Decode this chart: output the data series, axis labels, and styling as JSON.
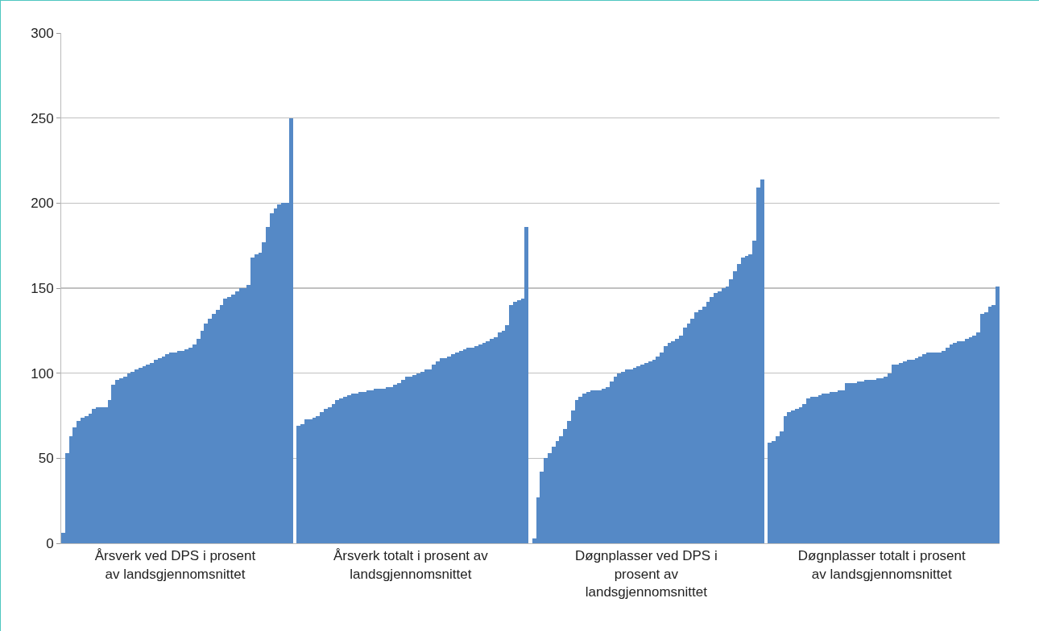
{
  "chart_data": {
    "type": "bar",
    "categories": [
      null,
      null,
      null,
      null,
      null,
      null,
      null,
      null,
      null,
      null,
      null,
      null,
      null,
      null,
      null,
      null,
      null,
      null,
      null,
      null,
      null,
      null,
      null,
      null,
      null,
      null,
      null,
      null,
      null,
      "Årsverk ved DPS i prosent av landsgjennomsnittet",
      null,
      null,
      null,
      null,
      null,
      null,
      null,
      null,
      null,
      null,
      null,
      null,
      null,
      null,
      null,
      null,
      null,
      null,
      null,
      null,
      null,
      null,
      null,
      null,
      null,
      null,
      null,
      null,
      null,
      null,
      null,
      null,
      null,
      null,
      null,
      null,
      null,
      null,
      null,
      null,
      null,
      null,
      null,
      null,
      null,
      null,
      null,
      null,
      null,
      null,
      null,
      null,
      null,
      null,
      null,
      null,
      null,
      null,
      null,
      null,
      "Årsverk totalt i prosent av landsgjennomsnittet",
      null,
      null,
      null,
      null,
      null,
      null,
      null,
      null,
      null,
      null,
      null,
      null,
      null,
      null,
      null,
      null,
      null,
      null,
      null,
      null,
      null,
      null,
      null,
      null,
      null,
      null,
      null,
      null,
      null,
      null,
      null,
      null,
      null,
      null,
      null,
      null,
      null,
      null,
      null,
      null,
      null,
      null,
      null,
      null,
      null,
      null,
      null,
      null,
      null,
      null,
      null,
      null,
      null,
      null,
      null,
      null,
      null,
      null,
      null,
      null,
      "Døgnplasser ved DPS i prosent av landsgjennomsnittet",
      null,
      null,
      null,
      null,
      null,
      null,
      null,
      null,
      null,
      null,
      null,
      null,
      null,
      null,
      null,
      null,
      null,
      null,
      null,
      null,
      null,
      null,
      null,
      null,
      null,
      null,
      null,
      null,
      null,
      null,
      null,
      null,
      null,
      null,
      null,
      null,
      null,
      null,
      null,
      null,
      null,
      null,
      null,
      null,
      null,
      null,
      null,
      null,
      null,
      null,
      null,
      null,
      null,
      null,
      null,
      null,
      null,
      null,
      null,
      null,
      "Døgnplasser totalt i prosent av landsgjennomsnittet",
      null,
      null,
      null,
      null,
      null,
      null,
      null,
      null,
      null,
      null,
      null,
      null,
      null,
      null,
      null,
      null,
      null,
      null,
      null,
      null,
      null,
      null,
      null,
      null,
      null,
      null,
      null,
      null,
      null,
      null
    ],
    "values": [
      6,
      53,
      63,
      68,
      72,
      74,
      75,
      76,
      79,
      80,
      80,
      80,
      84,
      93,
      96,
      97,
      98,
      100,
      101,
      102,
      103,
      104,
      105,
      106,
      108,
      109,
      110,
      111,
      112,
      112,
      113,
      113,
      114,
      115,
      117,
      120,
      125,
      129,
      132,
      135,
      137,
      140,
      144,
      145,
      146,
      148,
      150,
      150,
      152,
      168,
      170,
      171,
      177,
      186,
      194,
      197,
      199,
      200,
      200,
      250,
      null,
      69,
      70,
      73,
      73,
      74,
      75,
      77,
      79,
      80,
      82,
      84,
      85,
      86,
      87,
      88,
      88,
      89,
      89,
      90,
      90,
      91,
      91,
      91,
      92,
      92,
      93,
      94,
      96,
      98,
      98,
      99,
      100,
      101,
      102,
      102,
      105,
      107,
      109,
      109,
      110,
      111,
      112,
      113,
      114,
      115,
      115,
      116,
      117,
      118,
      119,
      120,
      121,
      124,
      125,
      128,
      140,
      142,
      143,
      144,
      186,
      null,
      3,
      27,
      42,
      50,
      53,
      57,
      60,
      63,
      67,
      72,
      78,
      84,
      86,
      88,
      89,
      90,
      90,
      90,
      91,
      92,
      95,
      98,
      100,
      101,
      102,
      102,
      103,
      104,
      105,
      106,
      107,
      108,
      110,
      112,
      116,
      118,
      119,
      120,
      122,
      127,
      129,
      132,
      136,
      137,
      139,
      142,
      145,
      147,
      148,
      150,
      151,
      155,
      160,
      164,
      168,
      169,
      170,
      178,
      209,
      214,
      null,
      59,
      60,
      63,
      66,
      75,
      77,
      78,
      79,
      80,
      82,
      85,
      86,
      86,
      87,
      88,
      88,
      89,
      89,
      90,
      90,
      94,
      94,
      94,
      95,
      95,
      96,
      96,
      96,
      97,
      97,
      98,
      100,
      105,
      105,
      106,
      107,
      108,
      108,
      109,
      110,
      111,
      112,
      112,
      112,
      112,
      113,
      115,
      117,
      118,
      119,
      119,
      120,
      121,
      122,
      124,
      135,
      136,
      139,
      140,
      151
    ],
    "color": "#5589c6",
    "ylim": [
      0,
      300
    ],
    "yticks": [
      0,
      50,
      100,
      150,
      200,
      250,
      300
    ],
    "grid": "y"
  }
}
